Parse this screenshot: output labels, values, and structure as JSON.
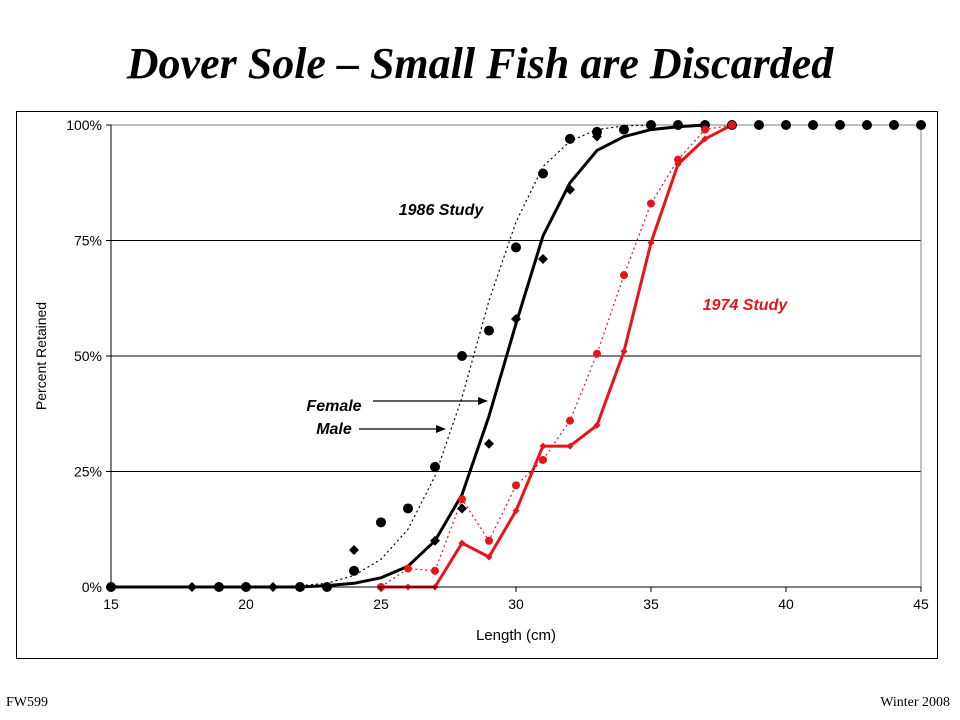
{
  "slide": {
    "title": "Dover Sole – Small Fish are Discarded",
    "footer_left": "FW599",
    "footer_right": "Winter 2008"
  },
  "chart_data": {
    "type": "line",
    "xlabel": "Length (cm)",
    "ylabel": "Percent Retained",
    "xlim": [
      15,
      45
    ],
    "ylim": [
      0,
      100
    ],
    "x_ticks": [
      "15",
      "20",
      "25",
      "30",
      "35",
      "40",
      "45"
    ],
    "y_ticks": [
      "0%",
      "25%",
      "50%",
      "75%",
      "100%"
    ],
    "grid": "horizontal",
    "annotations": {
      "study_1986": "1986 Study",
      "study_1974": "1974 Study",
      "female": "Female",
      "male": "Male"
    },
    "colors": {
      "study_1986": "#000000",
      "study_1974": "#e8131b"
    },
    "series": [
      {
        "name": "Female",
        "study": "1986 Study",
        "marker": "circle",
        "color": "#000000",
        "x": [
          15,
          19,
          20,
          22,
          23,
          24,
          25,
          26,
          27,
          28,
          29,
          30,
          31,
          32,
          33,
          34,
          35,
          36,
          37,
          38,
          39,
          40,
          41,
          42,
          43,
          44,
          45
        ],
        "y": [
          0,
          0,
          0,
          0,
          0,
          3.5,
          14,
          17,
          26,
          50,
          55.5,
          73.5,
          89.5,
          97,
          98.5,
          99,
          100,
          100,
          100,
          100,
          100,
          100,
          100,
          100,
          100,
          100,
          100
        ]
      },
      {
        "name": "Male",
        "study": "1986 Study",
        "marker": "diamond",
        "color": "#000000",
        "x": [
          18,
          21,
          24,
          27,
          28,
          29,
          30,
          31,
          32,
          33
        ],
        "y": [
          0,
          0,
          8,
          10,
          17,
          31,
          58,
          71,
          86,
          97.5
        ]
      },
      {
        "name": "Female",
        "study": "1974 Study",
        "marker": "circle",
        "color": "#e8131b",
        "x": [
          25,
          26,
          27,
          28,
          29,
          30,
          31,
          32,
          33,
          34,
          35,
          36,
          37,
          38
        ],
        "y": [
          0,
          4,
          3.5,
          19,
          10,
          22,
          27.5,
          36,
          50.5,
          67.5,
          83,
          92.5,
          99,
          100
        ]
      },
      {
        "name": "Male",
        "study": "1974 Study",
        "marker": "diamond",
        "color": "#e8131b",
        "x": [
          25,
          26,
          27,
          28,
          29,
          30,
          31,
          32,
          33,
          34,
          35,
          36,
          37,
          38
        ],
        "y": [
          0,
          0,
          0,
          9.5,
          6.5,
          16.5,
          30.5,
          30.5,
          35,
          51,
          74.5,
          91.5,
          97,
          100
        ]
      }
    ],
    "fitted_curves": [
      {
        "name": "Female",
        "study": "1986 Study",
        "style": "dotted",
        "color": "#000000",
        "x": [
          15,
          21,
          22,
          23,
          24,
          25,
          26,
          27,
          28,
          29,
          30,
          31,
          32,
          33,
          34,
          35
        ],
        "y": [
          0,
          0,
          0.3,
          0.8,
          2.5,
          6,
          12.5,
          24,
          41,
          62,
          79,
          91,
          96.5,
          99,
          99.8,
          100
        ]
      },
      {
        "name": "Male",
        "study": "1986 Study",
        "style": "solid",
        "color": "#000000",
        "x": [
          15,
          22,
          23,
          24,
          25,
          26,
          27,
          28,
          29,
          30,
          31,
          32,
          33,
          34,
          35,
          36,
          37
        ],
        "y": [
          0,
          0,
          0.3,
          0.8,
          2,
          4.5,
          10,
          20,
          37,
          57,
          76,
          87.5,
          94.5,
          97.5,
          99,
          99.6,
          100
        ]
      },
      {
        "name": "Female",
        "study": "1974 Study",
        "style": "dotted",
        "color": "#e8131b",
        "x": [
          25,
          26,
          27,
          28,
          29,
          30,
          31,
          32,
          33,
          34,
          35,
          36,
          37,
          38
        ],
        "y": [
          0,
          4,
          3.5,
          19,
          10,
          22,
          27.5,
          36,
          50.5,
          67.5,
          83,
          92.5,
          99,
          100
        ]
      },
      {
        "name": "Male",
        "study": "1974 Study",
        "style": "solid",
        "color": "#e8131b",
        "x": [
          25,
          26,
          27,
          28,
          29,
          30,
          31,
          32,
          33,
          34,
          35,
          36,
          37,
          38
        ],
        "y": [
          0,
          0,
          0,
          9.5,
          6.5,
          16.5,
          30.5,
          30.5,
          35,
          51,
          74.5,
          91.5,
          97,
          100
        ]
      }
    ]
  }
}
